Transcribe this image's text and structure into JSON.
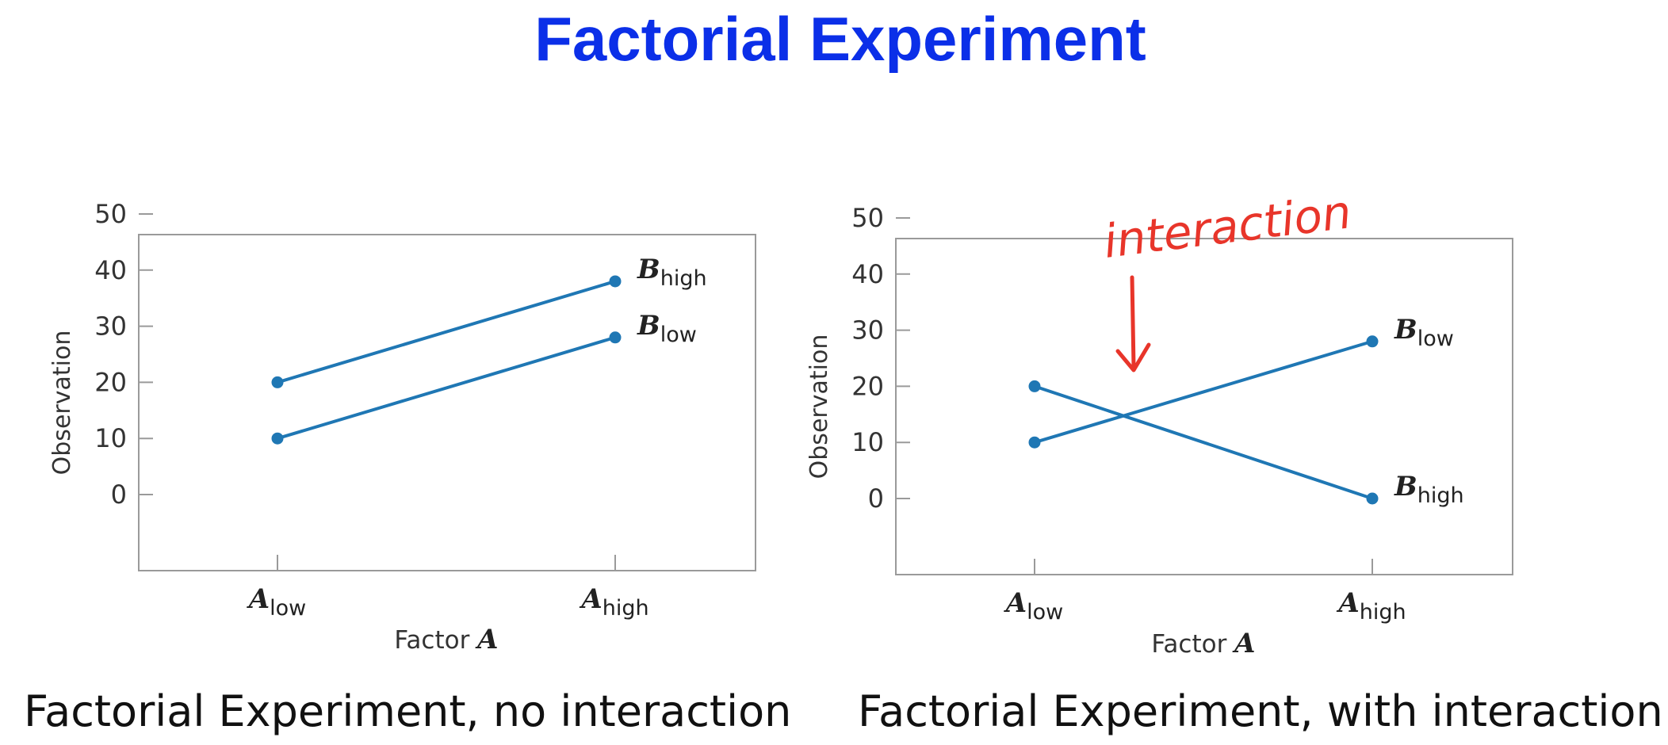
{
  "title": "Factorial Experiment",
  "chart_data": [
    {
      "type": "line",
      "caption": "Factorial Experiment, no interaction",
      "categories": [
        "A_low",
        "A_high"
      ],
      "category_labels": [
        {
          "main": "A",
          "sub": "low"
        },
        {
          "main": "A",
          "sub": "high"
        }
      ],
      "xlabel": {
        "main": "Factor ",
        "var": "A"
      },
      "ylabel": "Observation",
      "ylim": [
        -10,
        50
      ],
      "yticks": [
        "50",
        "40",
        "30",
        "20",
        "10",
        "0"
      ],
      "grid": false,
      "series": [
        {
          "name": "B_high",
          "label": {
            "main": "B",
            "sub": "high"
          },
          "values": [
            20,
            38
          ]
        },
        {
          "name": "B_low",
          "label": {
            "main": "B",
            "sub": "low"
          },
          "values": [
            10,
            28
          ]
        }
      ],
      "color": "#1f77b4"
    },
    {
      "type": "line",
      "caption": "Factorial Experiment, with interaction",
      "categories": [
        "A_low",
        "A_high"
      ],
      "category_labels": [
        {
          "main": "A",
          "sub": "low"
        },
        {
          "main": "A",
          "sub": "high"
        }
      ],
      "xlabel": {
        "main": "Factor ",
        "var": "A"
      },
      "ylabel": "Observation",
      "ylim": [
        -10,
        50
      ],
      "yticks": [
        "50",
        "40",
        "30",
        "20",
        "10",
        "0"
      ],
      "grid": false,
      "series": [
        {
          "name": "B_low",
          "label": {
            "main": "B",
            "sub": "low"
          },
          "values": [
            10,
            28
          ]
        },
        {
          "name": "B_high",
          "label": {
            "main": "B",
            "sub": "high"
          },
          "values": [
            20,
            0
          ]
        }
      ],
      "annotation": {
        "text": "interaction",
        "color": "#e8352a"
      },
      "color": "#1f77b4"
    }
  ]
}
